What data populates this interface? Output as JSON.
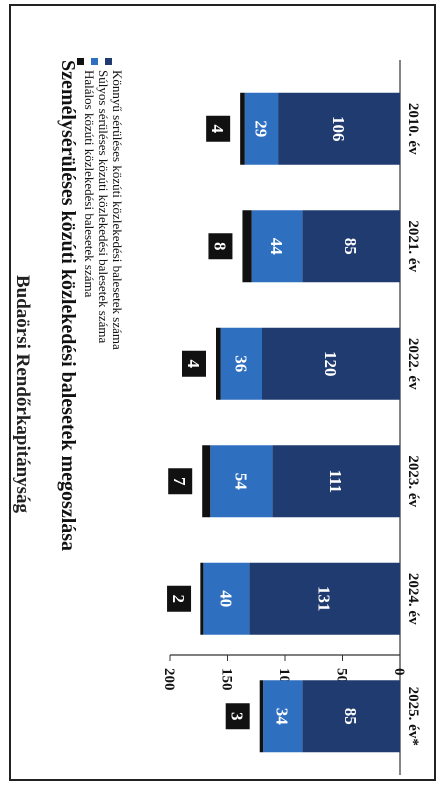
{
  "header": {
    "organization": "Budaörsi Rendőrkapitányság"
  },
  "chart_data": {
    "type": "bar",
    "stacked": true,
    "orientation": "vertical",
    "title": "Személysérüléses közúti közlekedési balesetek megoszlása",
    "categories": [
      "2010. év",
      "2021. év",
      "2022. év",
      "2023. év",
      "2024. év",
      "2025. év*"
    ],
    "series": [
      {
        "name": "Könnyű sérüléses közúti közlekedési balesetek száma",
        "values": [
          106,
          85,
          120,
          111,
          131,
          85
        ],
        "color": "#1f3b70"
      },
      {
        "name": "Súlyos sérüléses közúti közlekedési balesetek száma",
        "values": [
          29,
          44,
          36,
          54,
          40,
          34
        ],
        "color": "#2f6fc0"
      },
      {
        "name": "Halálos közúti közlekedési balesetek száma",
        "values": [
          4,
          8,
          4,
          7,
          2,
          3
        ],
        "color": "#111111"
      }
    ],
    "ylim": [
      0,
      200
    ],
    "yticks": [
      0,
      50,
      100,
      150,
      200
    ],
    "legend_position": "top-left"
  }
}
